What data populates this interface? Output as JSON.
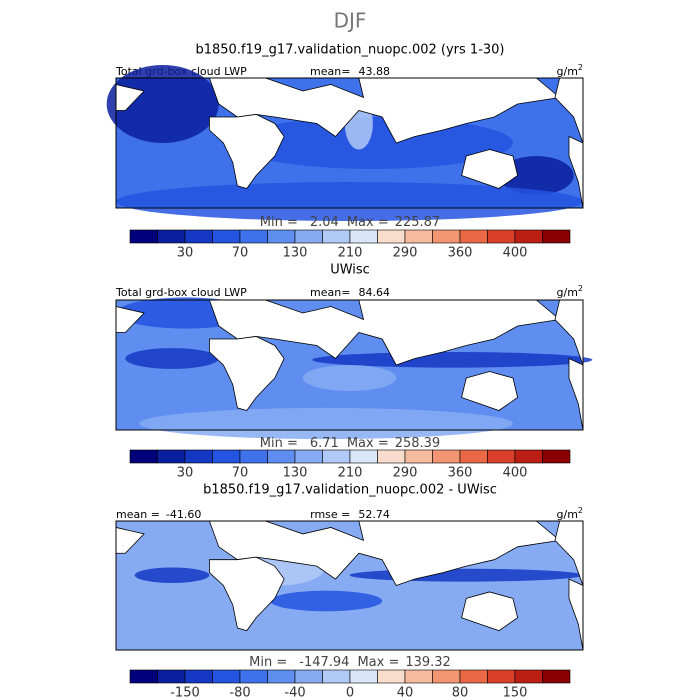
{
  "figure": {
    "title": "DJF",
    "colors": [
      "#00007a",
      "#0a1f9e",
      "#1538c4",
      "#2454e0",
      "#3f72ea",
      "#5f8ef0",
      "#86abf3",
      "#b0c9f6",
      "#d8e6f8",
      "#f8ddcd",
      "#f5bb9f",
      "#f29572",
      "#ea6845",
      "#d9402a",
      "#bb1f14",
      "#8a0000"
    ],
    "panels": [
      {
        "title": "b1850.f19_g17.validation_nuopc.002 (yrs 1-30)",
        "left_label": "Total grd-box cloud LWP",
        "stat_label": "mean=",
        "stat_value": 43.88,
        "units": "g/m",
        "units_power": "2",
        "min_label": "Min =",
        "min": 2.04,
        "max_label": "Max =",
        "max": 225.87,
        "ticks": [
          30,
          70,
          130,
          210,
          290,
          360,
          400
        ]
      },
      {
        "title": "UWisc",
        "left_label": "Total grd-box cloud LWP",
        "stat_label": "mean=",
        "stat_value": 84.64,
        "units": "g/m",
        "units_power": "2",
        "min_label": "Min =",
        "min": 6.71,
        "max_label": "Max =",
        "max": 258.39,
        "ticks": [
          30,
          70,
          130,
          210,
          290,
          360,
          400
        ]
      },
      {
        "title": "b1850.f19_g17.validation_nuopc.002 - UWisc",
        "left_label": "mean =",
        "left_value": -41.6,
        "left_value_label": "-41.60",
        "stat_label": "rmse =",
        "stat_value": 52.74,
        "units": "g/m",
        "units_power": "2",
        "min_label": "Min =",
        "min": -147.94,
        "max_label": "Max =",
        "max": 139.32,
        "ticks": [
          -150,
          -80,
          -40,
          0,
          40,
          80,
          150
        ]
      }
    ]
  }
}
